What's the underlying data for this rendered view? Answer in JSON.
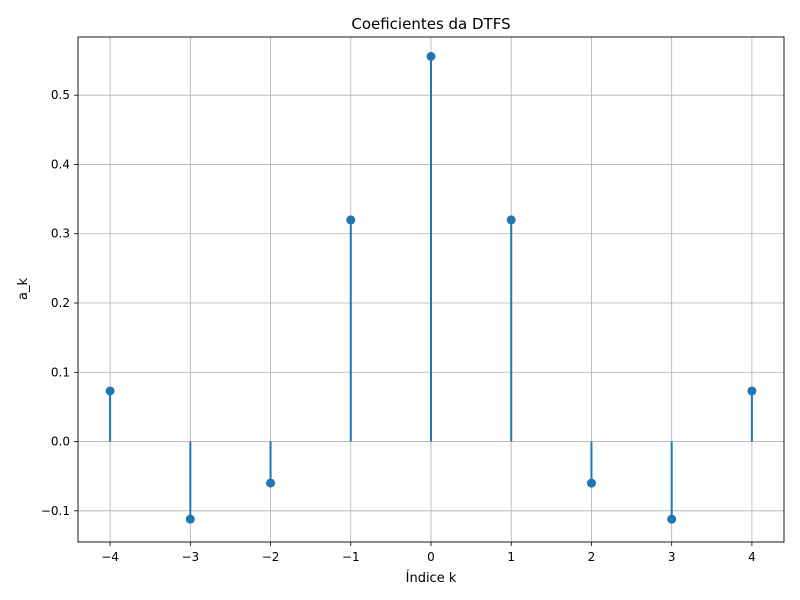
{
  "chart_data": {
    "type": "stem",
    "title": "Coeficientes da DTFS",
    "xlabel": "Índice k",
    "ylabel": "a_k",
    "x": [
      -4,
      -3,
      -2,
      -1,
      0,
      1,
      2,
      3,
      4
    ],
    "values": [
      0.073,
      -0.112,
      -0.06,
      0.32,
      0.556,
      0.32,
      -0.06,
      -0.112,
      0.073
    ],
    "xlim": [
      -4.4,
      4.4
    ],
    "ylim": [
      -0.145,
      0.584
    ],
    "xticks": [
      -4,
      -3,
      -2,
      -1,
      0,
      1,
      2,
      3,
      4
    ],
    "xtick_labels": [
      "−4",
      "−3",
      "−2",
      "−1",
      "0",
      "1",
      "2",
      "3",
      "4"
    ],
    "yticks": [
      -0.1,
      0.0,
      0.1,
      0.2,
      0.3,
      0.4,
      0.5
    ],
    "ytick_labels": [
      "−0.1",
      "0.0",
      "0.1",
      "0.2",
      "0.3",
      "0.4",
      "0.5"
    ],
    "grid": true,
    "color": "#1f77b4"
  }
}
